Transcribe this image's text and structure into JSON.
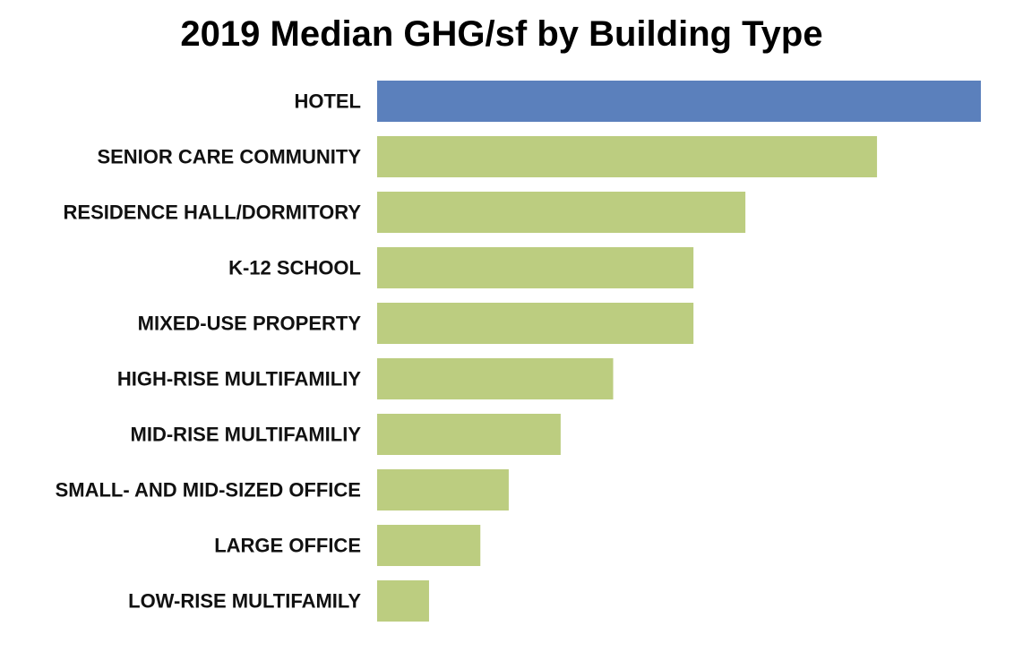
{
  "chart_data": {
    "type": "bar",
    "orientation": "horizontal",
    "title": "2019 Median GHG/sf by Building Type",
    "xlabel": "",
    "ylabel": "",
    "categories": [
      "HOTEL",
      "SENIOR CARE COMMUNITY",
      "RESIDENCE HALL/DORMITORY",
      "K-12 SCHOOL",
      "MIXED-USE PROPERTY",
      "HIGH-RISE MULTIFAMILIY",
      "MID-RISE MULTIFAMILIY",
      "SMALL- AND MID-SIZED OFFICE",
      "LARGE OFFICE",
      "LOW-RISE MULTIFAMILY"
    ],
    "values": [
      100,
      82.8,
      61.0,
      52.4,
      52.4,
      39.1,
      30.4,
      21.8,
      17.1,
      8.6
    ],
    "xlim": [
      0,
      100
    ],
    "grid": false,
    "axes_visible": false,
    "colors": {
      "highlight": "#5B80BC",
      "default": "#BCCD80"
    },
    "highlight_index": 0
  }
}
